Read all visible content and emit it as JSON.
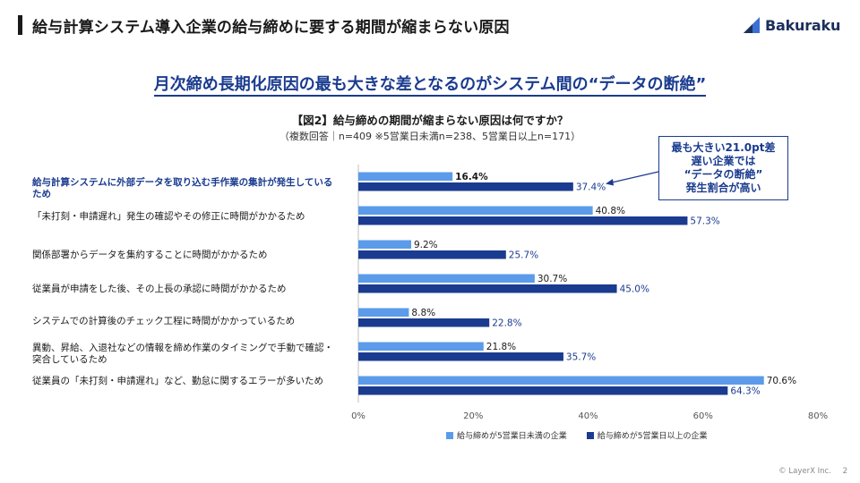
{
  "header": {
    "title": "給与計算システム導入企業の給与締めに要する期間が縮まらない原因",
    "logo_text": "Bakuraku"
  },
  "headline": "月次締め長期化原因の最も大きな差となるのがシステム間の“データの断絶”",
  "figure": {
    "title": "【図2】給与締めの期間が縮まらない原因は何ですか？",
    "subtitle": "（複数回答｜n=409 ※5営業日未満n=238、5営業日以上n=171）"
  },
  "callout": {
    "lines": [
      "最も大きい21.0pt差",
      "遅い企業では",
      "“データの断絶”",
      "発生割合が高い"
    ]
  },
  "footer": {
    "copyright": "© LayerX Inc.",
    "page": "2"
  },
  "colors": {
    "light_series": "#5b9bea",
    "dark_series": "#1a3b8f",
    "accent_text": "#1a3b8f",
    "axis": "#bfbfbf"
  },
  "chart_data": {
    "type": "bar",
    "orientation": "horizontal",
    "categories": [
      "給与計算システムに外部データを取り込む手作業の集計が発生しているため",
      "「未打刻・申請遅れ」発生の確認やその修正に時間がかかるため",
      "関係部署からデータを集約することに時間がかかるため",
      "従業員が申請をした後、その上長の承認に時間がかかるため",
      "システムでの計算後のチェック工程に時間がかかっているため",
      "異動、昇給、入退社などの情報を締め作業のタイミングで手動で確認・突合しているため",
      "従業員の「未打刻・申請遅れ」など、勤怠に関するエラーが多いため"
    ],
    "series": [
      {
        "name": "給与締めが5営業日未満の企業",
        "values": [
          16.4,
          40.8,
          9.2,
          30.7,
          8.8,
          21.8,
          70.6
        ]
      },
      {
        "name": "給与締めが5営業日以上の企業",
        "values": [
          37.4,
          57.3,
          25.7,
          45.0,
          22.8,
          35.7,
          64.3
        ]
      }
    ],
    "value_labels": [
      [
        "16.4%",
        "40.8%",
        "9.2%",
        "30.7%",
        "8.8%",
        "21.8%",
        "70.6%"
      ],
      [
        "37.4%",
        "57.3%",
        "25.7%",
        "45.0%",
        "22.8%",
        "35.7%",
        "64.3%"
      ]
    ],
    "xlim": [
      0,
      80
    ],
    "xticks": [
      0,
      20,
      40,
      60,
      80
    ],
    "xtick_labels": [
      "0%",
      "20%",
      "40%",
      "60%",
      "80%"
    ],
    "highlighted_category": 0,
    "legend_position": "bottom",
    "grid": false
  }
}
